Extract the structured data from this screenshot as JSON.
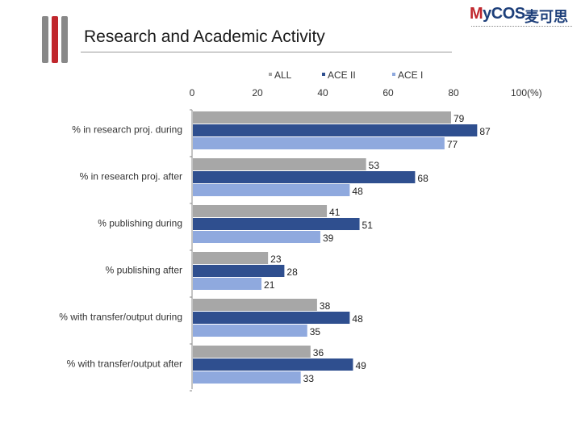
{
  "header": {
    "title": "Research and Academic Activity",
    "logo_text_latin_m": "M",
    "logo_text_latin_rest": "yCOS",
    "logo_text_cn": "麦可思"
  },
  "colors": {
    "accent_red": "#c0272d",
    "accent_gray": "#888888",
    "brand_blue": "#1d3f7a"
  },
  "chart_data": {
    "type": "bar",
    "orientation": "horizontal",
    "title": "",
    "xlabel": "",
    "ylabel": "",
    "x_axis_unit": "(%)",
    "xlim": [
      0,
      100
    ],
    "x_ticks": [
      0,
      20,
      40,
      60,
      80,
      100
    ],
    "x_axis_position": "top",
    "grid": false,
    "legend_position": "top",
    "categories": [
      "% in research proj. during",
      "% in research proj. after",
      "% publishing during",
      "% publishing after",
      "% with transfer/output during",
      "% with transfer/output after"
    ],
    "series": [
      {
        "name": "ALL",
        "color": "#a7a7a7",
        "values": [
          79,
          53,
          41,
          23,
          38,
          36
        ]
      },
      {
        "name": "ACE II",
        "color": "#2f4f8f",
        "values": [
          87,
          68,
          51,
          28,
          48,
          49
        ]
      },
      {
        "name": "ACE I",
        "color": "#8fa9de",
        "values": [
          77,
          48,
          39,
          21,
          35,
          33
        ]
      }
    ]
  }
}
